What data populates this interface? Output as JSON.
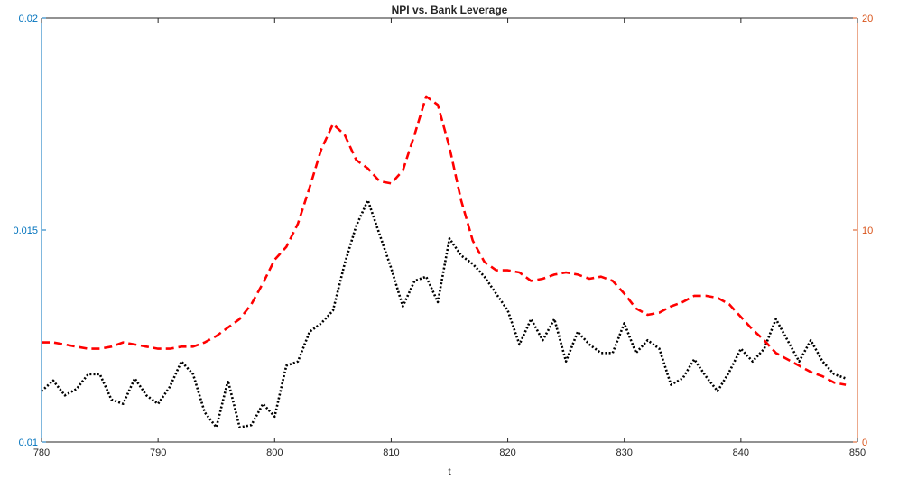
{
  "chart_data": {
    "type": "line",
    "title": "NPI vs. Bank Leverage",
    "xlabel": "t",
    "xlim": [
      780,
      850
    ],
    "x_ticks": [
      "780",
      "790",
      "800",
      "810",
      "820",
      "830",
      "840",
      "850"
    ],
    "ylim_left": [
      0.01,
      0.02
    ],
    "y_ticks_left": [
      "0.01",
      "0.015",
      "0.02"
    ],
    "ylim_right": [
      0,
      20
    ],
    "y_ticks_right": [
      "0",
      "10",
      "20"
    ],
    "grid": false,
    "colors": {
      "left_axis": "#0072bd",
      "right_axis": "#d95319",
      "black_series": "#000000",
      "red_series": "#ff0000",
      "frame": "#262626"
    },
    "series": [
      {
        "axis": "left",
        "style": "dotted",
        "color": "#000000",
        "x": [
          780,
          781,
          782,
          783,
          784,
          785,
          786,
          787,
          788,
          789,
          790,
          791,
          792,
          793,
          794,
          795,
          796,
          797,
          798,
          799,
          800,
          801,
          802,
          803,
          804,
          805,
          806,
          807,
          808,
          809,
          810,
          811,
          812,
          813,
          814,
          815,
          816,
          817,
          818,
          819,
          820,
          821,
          822,
          823,
          824,
          825,
          826,
          827,
          828,
          829,
          830,
          831,
          832,
          833,
          834,
          835,
          836,
          837,
          838,
          839,
          840,
          841,
          842,
          843,
          844,
          845,
          846,
          847,
          848,
          849
        ],
        "y": [
          0.0112,
          0.01145,
          0.0111,
          0.01125,
          0.0116,
          0.0116,
          0.011,
          0.0109,
          0.0115,
          0.0111,
          0.0109,
          0.0113,
          0.0119,
          0.0116,
          0.0107,
          0.01035,
          0.01145,
          0.01035,
          0.0104,
          0.0109,
          0.0106,
          0.0118,
          0.0119,
          0.0126,
          0.0128,
          0.0131,
          0.0142,
          0.0151,
          0.0157,
          0.0149,
          0.0141,
          0.0132,
          0.0138,
          0.0139,
          0.0133,
          0.0148,
          0.0144,
          0.0142,
          0.0139,
          0.0135,
          0.0131,
          0.0123,
          0.0129,
          0.0124,
          0.0129,
          0.0119,
          0.0126,
          0.0123,
          0.0121,
          0.0121,
          0.0128,
          0.0121,
          0.0124,
          0.0122,
          0.01135,
          0.0115,
          0.01195,
          0.01155,
          0.0112,
          0.01165,
          0.0122,
          0.0119,
          0.0122,
          0.0129,
          0.0124,
          0.0119,
          0.0124,
          0.0119,
          0.0116,
          0.0115
        ]
      },
      {
        "axis": "right",
        "style": "dashed",
        "color": "#ff0000",
        "x": [
          780,
          781,
          782,
          783,
          784,
          785,
          786,
          787,
          788,
          789,
          790,
          791,
          792,
          793,
          794,
          795,
          796,
          797,
          798,
          799,
          800,
          801,
          802,
          803,
          804,
          805,
          806,
          807,
          808,
          809,
          810,
          811,
          812,
          813,
          814,
          815,
          816,
          817,
          818,
          819,
          820,
          821,
          822,
          823,
          824,
          825,
          826,
          827,
          828,
          829,
          830,
          831,
          832,
          833,
          834,
          835,
          836,
          837,
          838,
          839,
          840,
          841,
          842,
          843,
          844,
          845,
          846,
          847,
          848,
          849
        ],
        "y": [
          4.7,
          4.7,
          4.6,
          4.5,
          4.4,
          4.4,
          4.5,
          4.7,
          4.6,
          4.5,
          4.4,
          4.4,
          4.5,
          4.5,
          4.7,
          5.0,
          5.4,
          5.8,
          6.5,
          7.5,
          8.6,
          9.2,
          10.3,
          12.0,
          13.8,
          15.0,
          14.5,
          13.3,
          12.9,
          12.3,
          12.2,
          12.8,
          14.5,
          16.3,
          15.9,
          13.9,
          11.4,
          9.5,
          8.5,
          8.1,
          8.1,
          8.0,
          7.6,
          7.7,
          7.9,
          8.0,
          7.9,
          7.7,
          7.8,
          7.6,
          7.0,
          6.3,
          6.0,
          6.1,
          6.4,
          6.6,
          6.9,
          6.9,
          6.8,
          6.5,
          5.9,
          5.3,
          4.8,
          4.2,
          3.9,
          3.6,
          3.3,
          3.1,
          2.8,
          2.7
        ]
      }
    ]
  }
}
